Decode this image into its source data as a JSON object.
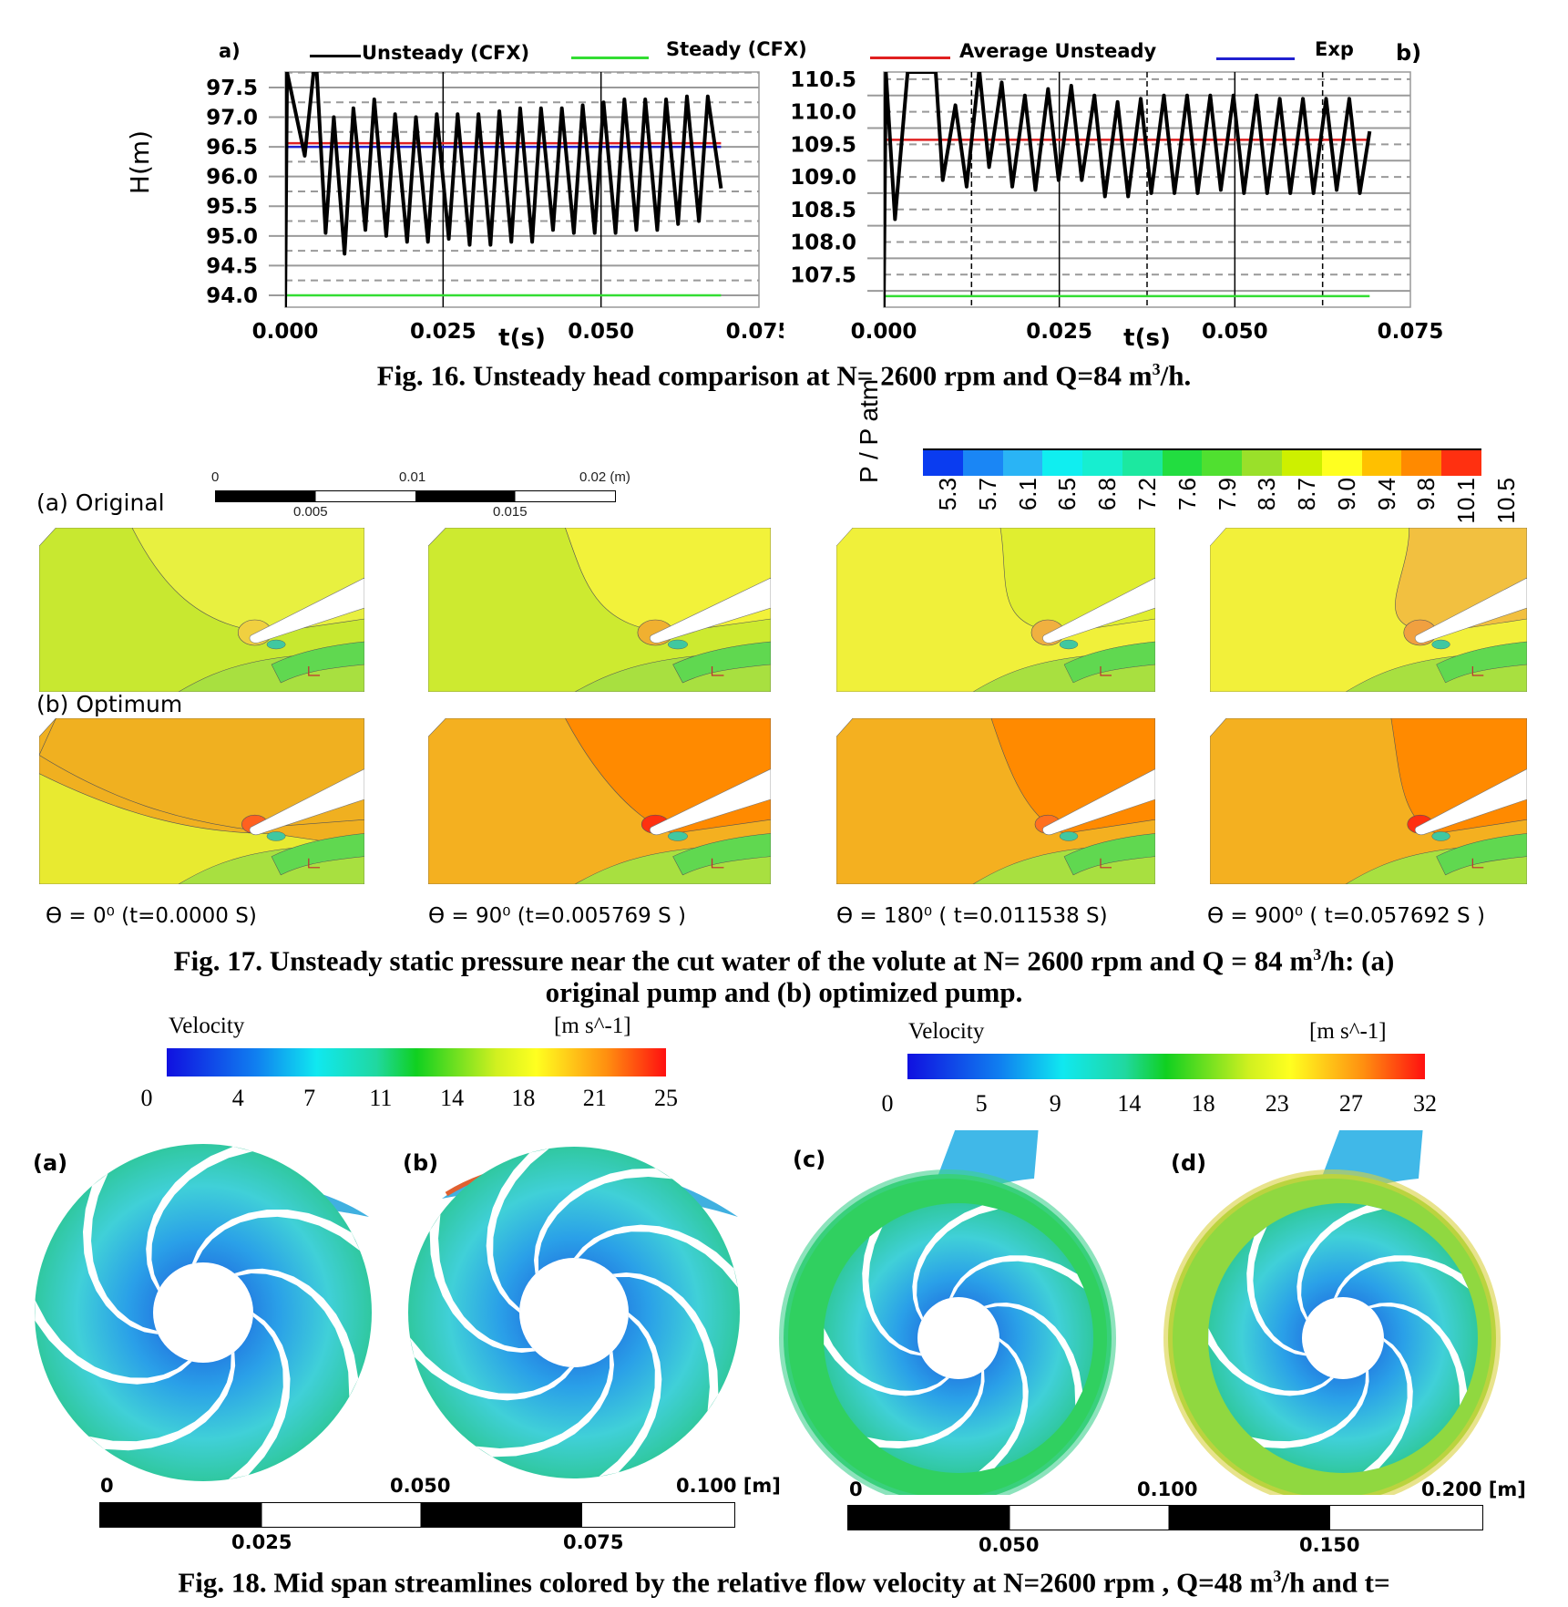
{
  "fig16": {
    "caption": "Fig. 16. Unsteady head comparison   at N= 2600 rpm and Q=84 m",
    "caption_sup": "3",
    "caption_end": "/h.",
    "legend": [
      {
        "label": "Unsteady (CFX)",
        "color": "#000000"
      },
      {
        "label": "Steady (CFX)",
        "color": "#33dd33"
      },
      {
        "label": "Average Unsteady",
        "color": "#e02020"
      },
      {
        "label": "Exp",
        "color": "#2020d0"
      }
    ]
  },
  "chart_data": [
    {
      "type": "line",
      "panel_label": "a)",
      "xlabel": "t(s)",
      "ylabel": "H(m)",
      "xlim": [
        0,
        0.075
      ],
      "ylim": [
        93.8,
        97.76
      ],
      "xticks": [
        "0.000",
        "0.025",
        "0.050",
        "0.075"
      ],
      "yticks": [
        "94.0",
        "94.5",
        "95.0",
        "95.5",
        "96.0",
        "96.5",
        "97.0",
        "97.5"
      ],
      "grid": true,
      "series": [
        {
          "name": "Unsteady (CFX)",
          "color": "#000000",
          "points": [
            [
              0,
              93.8
            ],
            [
              0.0003,
              97.76
            ],
            [
              0.0031,
              96.35
            ],
            [
              0.0045,
              97.76
            ],
            [
              0.005,
              97.76
            ],
            [
              0.0064,
              95.05
            ],
            [
              0.0077,
              97.0
            ],
            [
              0.0094,
              94.7
            ],
            [
              0.0108,
              97.15
            ],
            [
              0.0127,
              95.1
            ],
            [
              0.0141,
              97.3
            ],
            [
              0.016,
              95.0
            ],
            [
              0.0174,
              97.05
            ],
            [
              0.0193,
              94.9
            ],
            [
              0.0207,
              97.0
            ],
            [
              0.0226,
              94.9
            ],
            [
              0.024,
              97.05
            ],
            [
              0.0259,
              94.95
            ],
            [
              0.0273,
              97.05
            ],
            [
              0.0292,
              94.85
            ],
            [
              0.0306,
              97.05
            ],
            [
              0.0325,
              94.85
            ],
            [
              0.0339,
              97.1
            ],
            [
              0.0358,
              94.9
            ],
            [
              0.0372,
              97.15
            ],
            [
              0.0391,
              94.9
            ],
            [
              0.0405,
              97.15
            ],
            [
              0.0424,
              95.1
            ],
            [
              0.0438,
              97.15
            ],
            [
              0.0457,
              95.05
            ],
            [
              0.0471,
              97.2
            ],
            [
              0.049,
              95.05
            ],
            [
              0.0504,
              97.25
            ],
            [
              0.0523,
              95.05
            ],
            [
              0.0537,
              97.3
            ],
            [
              0.0556,
              95.1
            ],
            [
              0.057,
              97.3
            ],
            [
              0.0589,
              95.1
            ],
            [
              0.0603,
              97.3
            ],
            [
              0.0622,
              95.2
            ],
            [
              0.0636,
              97.35
            ],
            [
              0.0655,
              95.25
            ],
            [
              0.0669,
              97.35
            ],
            [
              0.069,
              95.8
            ]
          ]
        },
        {
          "name": "Steady (CFX)",
          "color": "#33dd33",
          "points": [
            [
              0,
              94.0
            ],
            [
              0.069,
              94.0
            ]
          ]
        },
        {
          "name": "Average Unsteady",
          "color": "#e02020",
          "points": [
            [
              0,
              96.56
            ],
            [
              0.069,
              96.56
            ]
          ]
        },
        {
          "name": "Exp",
          "color": "#2020d0",
          "points": [
            [
              0,
              96.5
            ],
            [
              0.069,
              96.5
            ]
          ]
        }
      ]
    },
    {
      "type": "line",
      "panel_label": "b)",
      "xlabel": "t(s)",
      "ylabel": "",
      "xlim": [
        0,
        0.075
      ],
      "ylim": [
        107.0,
        110.61
      ],
      "xticks": [
        "0.000",
        "0.025",
        "0.050",
        "0.075"
      ],
      "yticks": [
        "107.5",
        "108.0",
        "108.5",
        "109.0",
        "109.5",
        "110.0",
        "110.5"
      ],
      "grid": true,
      "series": [
        {
          "name": "Unsteady (CFX)",
          "color": "#000000",
          "points": [
            [
              0,
              107.0
            ],
            [
              0.0003,
              110.61
            ],
            [
              0.0016,
              108.35
            ],
            [
              0.0034,
              110.61
            ],
            [
              0.0074,
              110.61
            ],
            [
              0.0084,
              108.95
            ],
            [
              0.0102,
              110.1
            ],
            [
              0.0118,
              108.85
            ],
            [
              0.0136,
              110.65
            ],
            [
              0.015,
              109.15
            ],
            [
              0.0168,
              110.45
            ],
            [
              0.0183,
              108.85
            ],
            [
              0.0201,
              110.25
            ],
            [
              0.0216,
              108.8
            ],
            [
              0.0234,
              110.35
            ],
            [
              0.0249,
              108.95
            ],
            [
              0.0267,
              110.4
            ],
            [
              0.0282,
              108.95
            ],
            [
              0.03,
              110.25
            ],
            [
              0.0315,
              108.7
            ],
            [
              0.0333,
              110.15
            ],
            [
              0.0348,
              108.7
            ],
            [
              0.0366,
              110.2
            ],
            [
              0.0381,
              108.75
            ],
            [
              0.0399,
              110.25
            ],
            [
              0.0414,
              108.75
            ],
            [
              0.0432,
              110.25
            ],
            [
              0.0447,
              108.75
            ],
            [
              0.0465,
              110.25
            ],
            [
              0.048,
              108.8
            ],
            [
              0.0498,
              110.25
            ],
            [
              0.0513,
              108.75
            ],
            [
              0.0531,
              110.25
            ],
            [
              0.0546,
              108.75
            ],
            [
              0.0564,
              110.2
            ],
            [
              0.0579,
              108.75
            ],
            [
              0.0597,
              110.2
            ],
            [
              0.0612,
              108.75
            ],
            [
              0.063,
              110.2
            ],
            [
              0.0645,
              108.8
            ],
            [
              0.0663,
              110.2
            ],
            [
              0.0678,
              108.75
            ],
            [
              0.0692,
              109.7
            ]
          ]
        },
        {
          "name": "Steady (CFX)",
          "color": "#33dd33",
          "points": [
            [
              0,
              107.17
            ],
            [
              0.0692,
              107.17
            ]
          ]
        },
        {
          "name": "Average Unsteady",
          "color": "#e02020",
          "points": [
            [
              0,
              109.57
            ],
            [
              0.0692,
              109.57
            ]
          ]
        }
      ]
    }
  ],
  "fig17": {
    "row_a_label": "(a) Original",
    "row_b_label": "(b) Optimum",
    "scale_top": [
      "0",
      "0.01",
      "0.02 (m)"
    ],
    "scale_bottom": [
      "0.005",
      "0.015"
    ],
    "colorbar_title": "P / P atm",
    "colorbar_values": [
      "5.3",
      "5.7",
      "6.1",
      "6.5",
      "6.8",
      "7.2",
      "7.6",
      "7.9",
      "8.3",
      "8.7",
      "9.0",
      "9.4",
      "9.8",
      "10.1",
      "10.5"
    ],
    "colorbar_colors": [
      "#0a3cf0",
      "#1a86f5",
      "#2ab4f5",
      "#10eef0",
      "#17eed0",
      "#1ce8a0",
      "#22dd40",
      "#50e030",
      "#9ae02a",
      "#cdf000",
      "#ffff20",
      "#ffc000",
      "#ff8a00",
      "#ff3010"
    ],
    "theta_labels": [
      "ϴ = 0⁰ (t=0.0000 S)",
      "ϴ = 90⁰ (t=0.005769 S )",
      "ϴ = 180⁰ ( t=0.011538 S)",
      "ϴ = 900⁰ ( t=0.057692 S )"
    ],
    "panels_original": [
      {
        "bg": "#c8e830",
        "region": "#e8f040",
        "tip": "#f0d040"
      },
      {
        "bg": "#cdea30",
        "region": "#f2f23a",
        "tip": "#f0b030"
      },
      {
        "bg": "#f0f03a",
        "region": "#e0ee30",
        "tip": "#f0b040"
      },
      {
        "bg": "#f2f03a",
        "region": "#f2c040",
        "tip": "#f0a040"
      }
    ],
    "panels_optimum": [
      {
        "bg": "#f0b020",
        "region": "#e8ea30",
        "tip": "#ff6020"
      },
      {
        "bg": "#f4b020",
        "region": "#ff8a00",
        "tip": "#ff3010"
      },
      {
        "bg": "#f4b020",
        "region": "#ff8a00",
        "tip": "#ff7020"
      },
      {
        "bg": "#f4b020",
        "region": "#ff8a00",
        "tip": "#ff3010"
      }
    ],
    "caption_line1": "Fig. 17. Unsteady static pressure near the cut water of the volute at N= 2600 rpm and Q = 84 m",
    "caption_sup": "3",
    "caption_line1_end": "/h: (a)",
    "caption_line2": "original pump and (b) optimized pump."
  },
  "fig18": {
    "colorbars": [
      {
        "title": "Velocity",
        "unit": "[m s^-1]",
        "values": [
          "0",
          "4",
          "7",
          "11",
          "14",
          "18",
          "21",
          "25"
        ]
      },
      {
        "title": "Velocity",
        "unit": "[m s^-1]",
        "values": [
          "0",
          "5",
          "9",
          "14",
          "18",
          "23",
          "27",
          "32"
        ]
      }
    ],
    "panel_labels": [
      "(a)",
      "(b)",
      "(c)",
      "(d)"
    ],
    "scale_left": {
      "top": [
        "0",
        "0.050",
        "0.100 [m]"
      ],
      "bottom": [
        "0.025",
        "0.075"
      ]
    },
    "scale_right": {
      "top": [
        "0",
        "0.100",
        "0.200 [m]"
      ],
      "bottom": [
        "0.050",
        "0.150"
      ]
    },
    "caption": "Fig. 18. Mid span streamlines colored by  the relative flow velocity  at N=2600 rpm , Q=48 m",
    "caption_sup": "3",
    "caption_end": "/h and  t="
  }
}
